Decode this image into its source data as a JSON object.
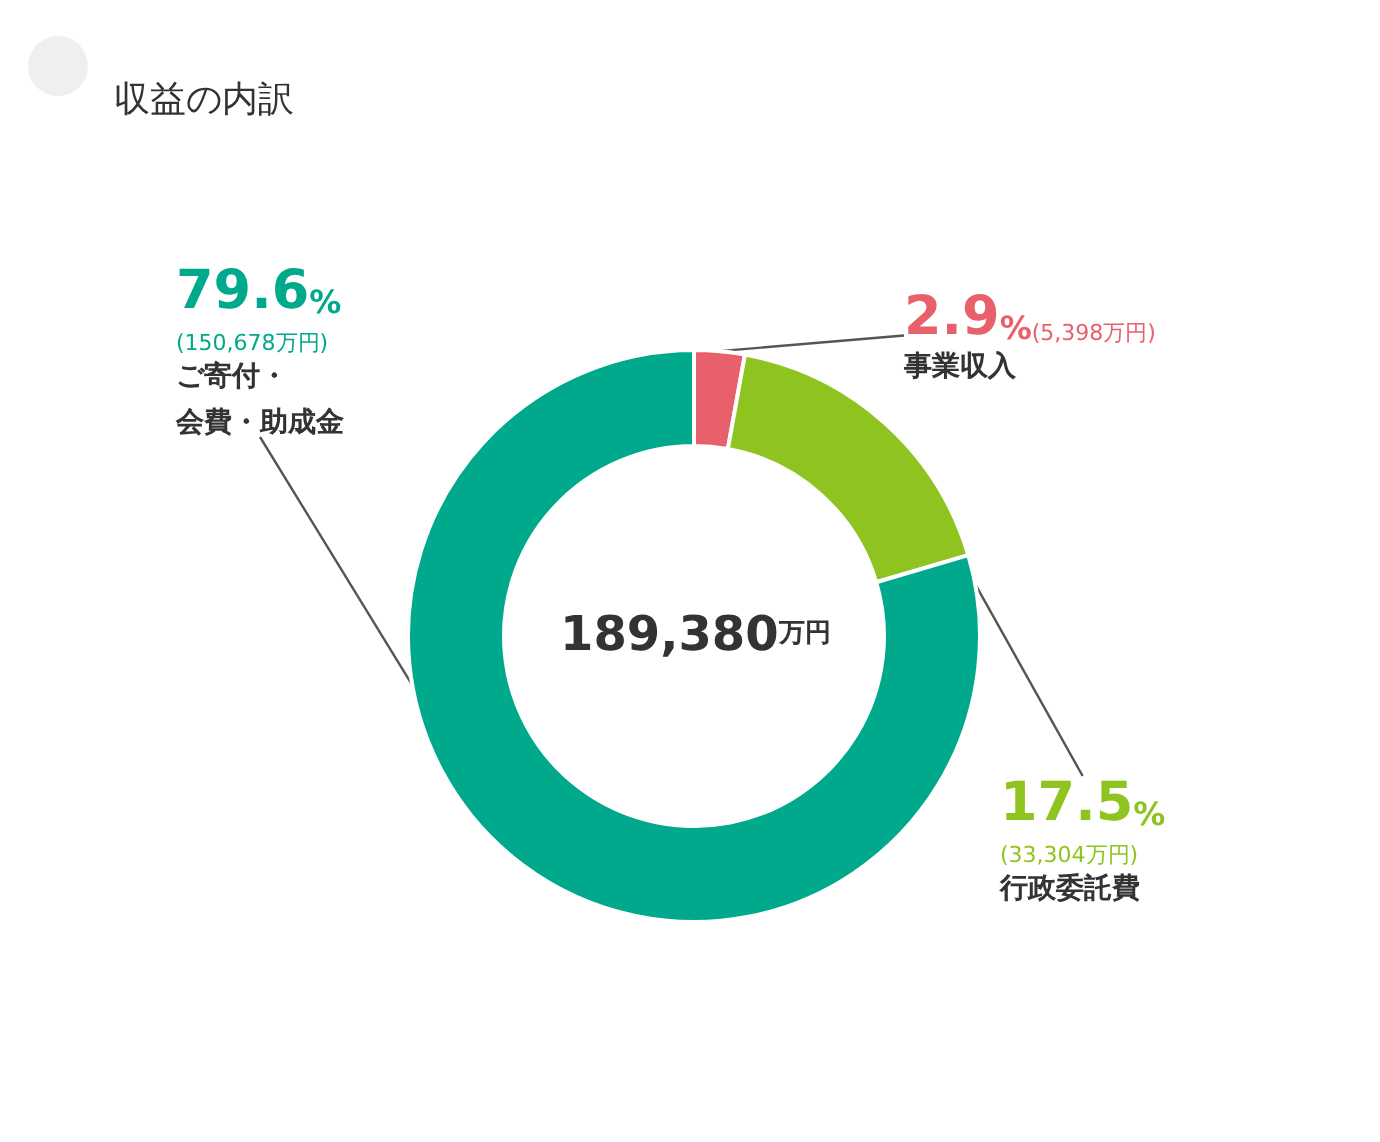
{
  "chart_data": {
    "type": "donut",
    "title": "収益の内訳",
    "categories": [
      "事業収入",
      "行政委託費",
      "ご寄付・会費・助成金"
    ],
    "values": [
      5398,
      33304,
      150678
    ],
    "colors": [
      "#e8606c",
      "#8fc31f",
      "#00a98b"
    ],
    "value_labels": [
      "2.9%(5,398万円)",
      "17.5%(33,304万円)",
      "79.6%(150,678万円)"
    ],
    "annotations": [
      "189,380万円"
    ],
    "legend": false
  }
}
